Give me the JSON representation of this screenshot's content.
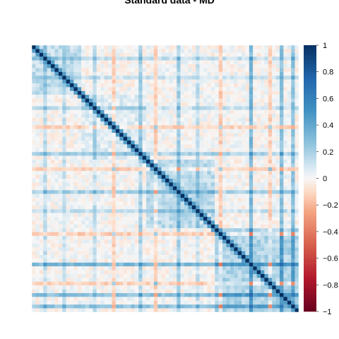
{
  "chart_data": {
    "type": "heatmap",
    "title": "Standard data - MD",
    "xlabel": "",
    "ylabel": "",
    "n_variables": 70,
    "value_range": [
      -1,
      1
    ],
    "diagonal_value": 1,
    "colorbar": {
      "ticks": [
        1,
        0.8,
        0.6,
        0.4,
        0.2,
        0,
        -0.2,
        -0.4,
        -0.6,
        -0.8,
        -1
      ],
      "tick_labels": [
        "1",
        "0.8",
        "0.6",
        "0.4",
        "0.2",
        "0",
        "−0.2",
        "−0.4",
        "−0.6",
        "−0.8",
        "−1"
      ],
      "placement": "right"
    },
    "colors": {
      "positive": "#053061",
      "neutral": "#f7f7f7",
      "negative": "#67001f",
      "label": "#e05050"
    },
    "blocks": [
      {
        "rows": [
          1,
          13
        ],
        "cols": [
          1,
          13
        ],
        "value": 0.22
      },
      {
        "rows": [
          14,
          30
        ],
        "cols": [
          14,
          30
        ],
        "value": 0.1
      },
      {
        "rows": [
          31,
          48
        ],
        "cols": [
          31,
          48
        ],
        "value": 0.25
      },
      {
        "rows": [
          49,
          70
        ],
        "cols": [
          49,
          70
        ],
        "value": 0.3
      }
    ],
    "feature_columns": [
      {
        "col": 4,
        "value": 0.25
      },
      {
        "col": 9,
        "value": 0.2
      },
      {
        "col": 17,
        "value": 0.22
      },
      {
        "col": 22,
        "value": -0.2
      },
      {
        "col": 29,
        "value": 0.35
      },
      {
        "col": 33,
        "value": -0.22
      },
      {
        "col": 39,
        "value": 0.35
      },
      {
        "col": 44,
        "value": 0.22
      },
      {
        "col": 50,
        "value": -0.22
      },
      {
        "col": 58,
        "value": 0.55
      },
      {
        "col": 63,
        "value": -0.2
      },
      {
        "col": 66,
        "value": 0.5
      },
      {
        "col": 69,
        "value": 0.45
      }
    ]
  }
}
